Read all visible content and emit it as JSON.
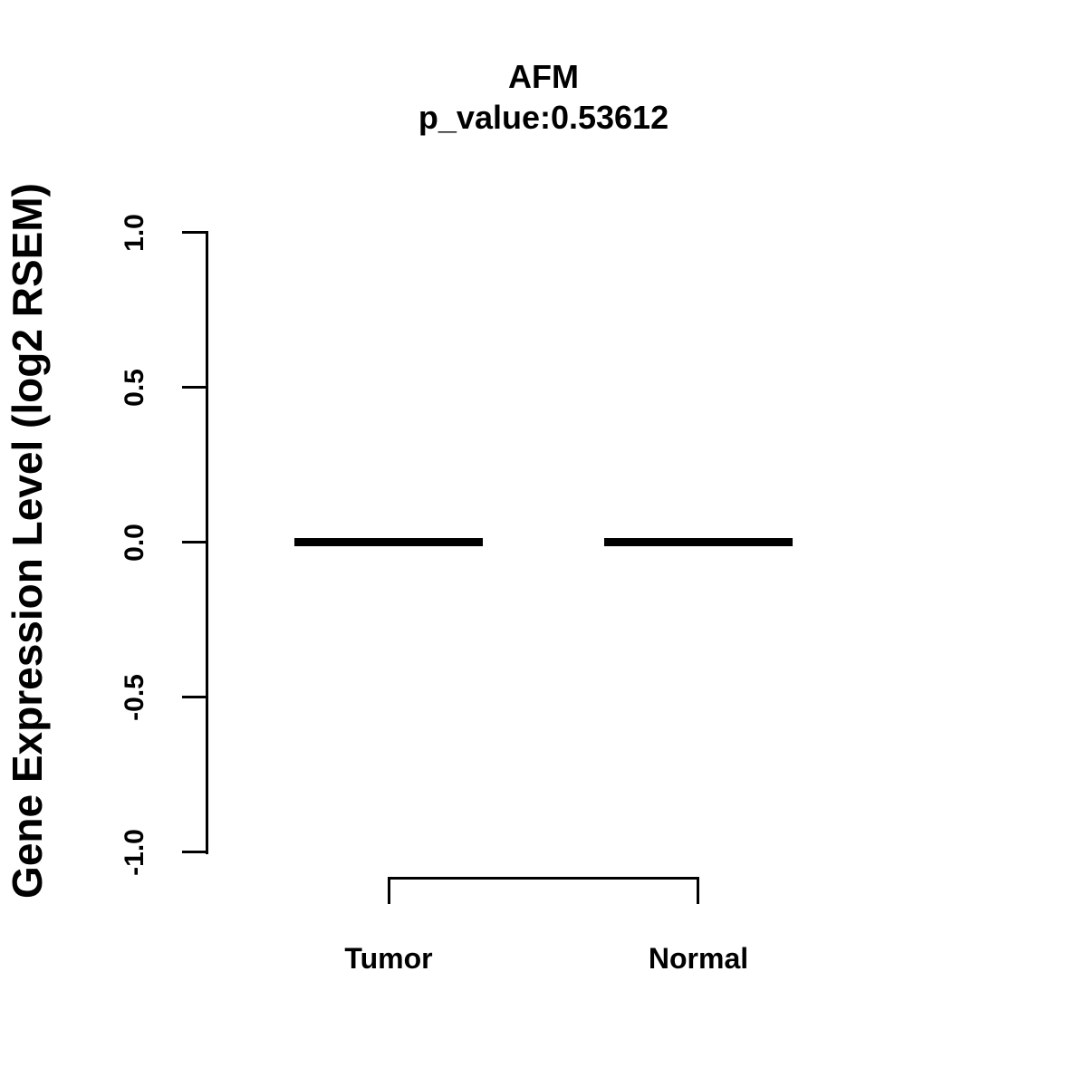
{
  "figure": {
    "title": "AFM",
    "subtitle": "p_value:0.53612"
  },
  "colors": {
    "foreground": "#000000",
    "background": "#ffffff"
  },
  "chart_data": {
    "type": "box",
    "title": "AFM",
    "subtitle": "p_value:0.53612",
    "p_value": 0.53612,
    "categories": [
      "Tumor",
      "Normal"
    ],
    "series": [
      {
        "name": "Tumor",
        "median": 0.0,
        "box_low": 0.0,
        "box_high": 0.0,
        "whisker_low": 0.0,
        "whisker_high": 0.0
      },
      {
        "name": "Normal",
        "median": 0.0,
        "box_low": 0.0,
        "box_high": 0.0,
        "whisker_low": 0.0,
        "whisker_high": 0.0
      }
    ],
    "xlabel": "",
    "ylabel": "Gene Expression Level (log2 RSEM)",
    "ylim": [
      -1.0,
      1.0
    ],
    "yticks": [
      1.0,
      0.5,
      0.0,
      -0.5,
      -1.0
    ],
    "ytick_labels": [
      "1.0",
      "0.5",
      "0.0",
      "-0.5",
      "-1.0"
    ],
    "grid": false,
    "legend": null,
    "comparison_bracket": {
      "from": "Tumor",
      "to": "Normal"
    }
  }
}
